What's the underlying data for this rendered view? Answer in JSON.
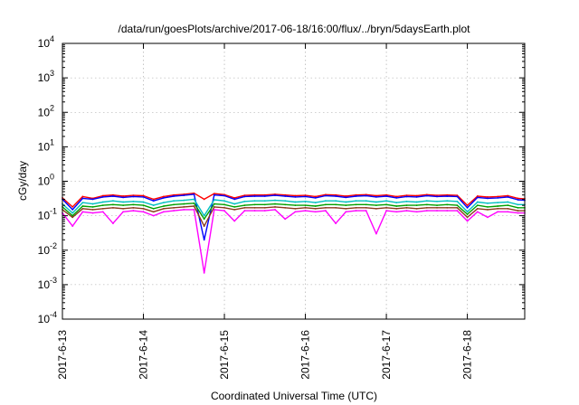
{
  "chart_data": {
    "type": "line",
    "title": "/data/run/goesPlots/archive/2017-06-18/16:00/flux/../bryn/5daysEarth.plot",
    "xlabel": "Coordinated Universal Time (UTC)",
    "ylabel": "cGy/day",
    "y_scale": "log",
    "ylim": [
      0.0001,
      10000
    ],
    "y_ticks": [
      {
        "base": "10",
        "exp": "-4",
        "value": 0.0001
      },
      {
        "base": "10",
        "exp": "-3",
        "value": 0.001
      },
      {
        "base": "10",
        "exp": "-2",
        "value": 0.01
      },
      {
        "base": "10",
        "exp": "-1",
        "value": 0.1
      },
      {
        "base": "10",
        "exp": "0",
        "value": 1
      },
      {
        "base": "10",
        "exp": "1",
        "value": 10
      },
      {
        "base": "10",
        "exp": "2",
        "value": 100
      },
      {
        "base": "10",
        "exp": "3",
        "value": 1000
      },
      {
        "base": "10",
        "exp": "4",
        "value": 10000
      }
    ],
    "xlim": [
      "2017-06-13T00:00",
      "2017-06-18T17:00"
    ],
    "x_ticks": [
      "2017-6-13",
      "2017-6-14",
      "2017-6-15",
      "2017-6-16",
      "2017-6-17",
      "2017-6-18"
    ],
    "grid": true,
    "legend": "none",
    "series": [
      {
        "color": "#ff0000",
        "x": [
          "2017-06-13T00:00",
          "2017-06-13T03:00",
          "2017-06-13T06:00",
          "2017-06-13T09:00",
          "2017-06-13T12:00",
          "2017-06-13T15:00",
          "2017-06-13T18:00",
          "2017-06-13T21:00",
          "2017-06-14T00:00",
          "2017-06-14T03:00",
          "2017-06-14T06:00",
          "2017-06-14T09:00",
          "2017-06-14T12:00",
          "2017-06-14T15:00",
          "2017-06-14T18:00",
          "2017-06-14T21:00",
          "2017-06-15T00:00",
          "2017-06-15T03:00",
          "2017-06-15T06:00",
          "2017-06-15T09:00",
          "2017-06-15T12:00",
          "2017-06-15T15:00",
          "2017-06-15T18:00",
          "2017-06-15T21:00",
          "2017-06-16T00:00",
          "2017-06-16T03:00",
          "2017-06-16T06:00",
          "2017-06-16T09:00",
          "2017-06-16T12:00",
          "2017-06-16T15:00",
          "2017-06-16T18:00",
          "2017-06-16T21:00",
          "2017-06-17T00:00",
          "2017-06-17T03:00",
          "2017-06-17T06:00",
          "2017-06-17T09:00",
          "2017-06-17T12:00",
          "2017-06-17T15:00",
          "2017-06-17T18:00",
          "2017-06-17T21:00",
          "2017-06-18T00:00",
          "2017-06-18T03:00",
          "2017-06-18T06:00",
          "2017-06-18T09:00",
          "2017-06-18T12:00",
          "2017-06-18T15:00",
          "2017-06-18T17:00"
        ],
        "values": [
          0.33,
          0.18,
          0.36,
          0.32,
          0.38,
          0.4,
          0.37,
          0.39,
          0.38,
          0.3,
          0.36,
          0.4,
          0.42,
          0.45,
          0.3,
          0.44,
          0.41,
          0.33,
          0.39,
          0.4,
          0.4,
          0.42,
          0.4,
          0.38,
          0.39,
          0.36,
          0.41,
          0.4,
          0.37,
          0.4,
          0.41,
          0.38,
          0.4,
          0.36,
          0.39,
          0.38,
          0.41,
          0.39,
          0.4,
          0.39,
          0.2,
          0.37,
          0.35,
          0.36,
          0.38,
          0.32,
          0.31
        ]
      },
      {
        "color": "#0000ff",
        "x": [
          "2017-06-13T00:00",
          "2017-06-13T03:00",
          "2017-06-13T06:00",
          "2017-06-13T09:00",
          "2017-06-13T12:00",
          "2017-06-13T15:00",
          "2017-06-13T18:00",
          "2017-06-13T21:00",
          "2017-06-14T00:00",
          "2017-06-14T03:00",
          "2017-06-14T06:00",
          "2017-06-14T09:00",
          "2017-06-14T12:00",
          "2017-06-14T15:00",
          "2017-06-14T18:00",
          "2017-06-14T21:00",
          "2017-06-15T00:00",
          "2017-06-15T03:00",
          "2017-06-15T06:00",
          "2017-06-15T09:00",
          "2017-06-15T12:00",
          "2017-06-15T15:00",
          "2017-06-15T18:00",
          "2017-06-15T21:00",
          "2017-06-16T00:00",
          "2017-06-16T03:00",
          "2017-06-16T06:00",
          "2017-06-16T09:00",
          "2017-06-16T12:00",
          "2017-06-16T15:00",
          "2017-06-16T18:00",
          "2017-06-16T21:00",
          "2017-06-17T00:00",
          "2017-06-17T03:00",
          "2017-06-17T06:00",
          "2017-06-17T09:00",
          "2017-06-17T12:00",
          "2017-06-17T15:00",
          "2017-06-17T18:00",
          "2017-06-17T21:00",
          "2017-06-18T00:00",
          "2017-06-18T03:00",
          "2017-06-18T06:00",
          "2017-06-18T09:00",
          "2017-06-18T12:00",
          "2017-06-18T15:00",
          "2017-06-18T17:00"
        ],
        "values": [
          0.3,
          0.15,
          0.32,
          0.3,
          0.35,
          0.37,
          0.34,
          0.36,
          0.35,
          0.27,
          0.33,
          0.37,
          0.39,
          0.42,
          0.02,
          0.4,
          0.38,
          0.3,
          0.36,
          0.37,
          0.37,
          0.39,
          0.37,
          0.35,
          0.36,
          0.33,
          0.38,
          0.37,
          0.34,
          0.37,
          0.38,
          0.35,
          0.37,
          0.33,
          0.36,
          0.35,
          0.38,
          0.36,
          0.37,
          0.36,
          0.17,
          0.34,
          0.32,
          0.33,
          0.35,
          0.29,
          0.28
        ]
      },
      {
        "color": "#00c0c0",
        "x": [
          "2017-06-13T00:00",
          "2017-06-13T03:00",
          "2017-06-13T06:00",
          "2017-06-13T09:00",
          "2017-06-13T12:00",
          "2017-06-13T15:00",
          "2017-06-13T18:00",
          "2017-06-13T21:00",
          "2017-06-14T00:00",
          "2017-06-14T03:00",
          "2017-06-14T06:00",
          "2017-06-14T09:00",
          "2017-06-14T12:00",
          "2017-06-14T15:00",
          "2017-06-14T18:00",
          "2017-06-14T21:00",
          "2017-06-15T00:00",
          "2017-06-15T03:00",
          "2017-06-15T06:00",
          "2017-06-15T09:00",
          "2017-06-15T12:00",
          "2017-06-15T15:00",
          "2017-06-15T18:00",
          "2017-06-15T21:00",
          "2017-06-16T00:00",
          "2017-06-16T03:00",
          "2017-06-16T06:00",
          "2017-06-16T09:00",
          "2017-06-16T12:00",
          "2017-06-16T15:00",
          "2017-06-16T18:00",
          "2017-06-16T21:00",
          "2017-06-17T00:00",
          "2017-06-17T03:00",
          "2017-06-17T06:00",
          "2017-06-17T09:00",
          "2017-06-17T12:00",
          "2017-06-17T15:00",
          "2017-06-17T18:00",
          "2017-06-17T21:00",
          "2017-06-18T00:00",
          "2017-06-18T03:00",
          "2017-06-18T06:00",
          "2017-06-18T09:00",
          "2017-06-18T12:00",
          "2017-06-18T15:00",
          "2017-06-18T17:00"
        ],
        "values": [
          0.22,
          0.12,
          0.24,
          0.22,
          0.25,
          0.27,
          0.25,
          0.26,
          0.25,
          0.2,
          0.24,
          0.27,
          0.28,
          0.3,
          0.1,
          0.29,
          0.27,
          0.22,
          0.26,
          0.27,
          0.27,
          0.28,
          0.27,
          0.25,
          0.26,
          0.24,
          0.27,
          0.27,
          0.25,
          0.27,
          0.27,
          0.25,
          0.27,
          0.24,
          0.26,
          0.25,
          0.27,
          0.26,
          0.27,
          0.26,
          0.13,
          0.25,
          0.23,
          0.24,
          0.25,
          0.21,
          0.21
        ]
      },
      {
        "color": "#00a000",
        "x": [
          "2017-06-13T00:00",
          "2017-06-13T03:00",
          "2017-06-13T06:00",
          "2017-06-13T09:00",
          "2017-06-13T12:00",
          "2017-06-13T15:00",
          "2017-06-13T18:00",
          "2017-06-13T21:00",
          "2017-06-14T00:00",
          "2017-06-14T03:00",
          "2017-06-14T06:00",
          "2017-06-14T09:00",
          "2017-06-14T12:00",
          "2017-06-14T15:00",
          "2017-06-14T18:00",
          "2017-06-14T21:00",
          "2017-06-15T00:00",
          "2017-06-15T03:00",
          "2017-06-15T06:00",
          "2017-06-15T09:00",
          "2017-06-15T12:00",
          "2017-06-15T15:00",
          "2017-06-15T18:00",
          "2017-06-15T21:00",
          "2017-06-16T00:00",
          "2017-06-16T03:00",
          "2017-06-16T06:00",
          "2017-06-16T09:00",
          "2017-06-16T12:00",
          "2017-06-16T15:00",
          "2017-06-16T18:00",
          "2017-06-16T21:00",
          "2017-06-17T00:00",
          "2017-06-17T03:00",
          "2017-06-17T06:00",
          "2017-06-17T09:00",
          "2017-06-17T12:00",
          "2017-06-17T15:00",
          "2017-06-17T18:00",
          "2017-06-17T21:00",
          "2017-06-18T00:00",
          "2017-06-18T03:00",
          "2017-06-18T06:00",
          "2017-06-18T09:00",
          "2017-06-18T12:00",
          "2017-06-18T15:00",
          "2017-06-18T17:00"
        ],
        "values": [
          0.18,
          0.1,
          0.19,
          0.18,
          0.2,
          0.21,
          0.2,
          0.21,
          0.2,
          0.16,
          0.19,
          0.21,
          0.22,
          0.23,
          0.08,
          0.22,
          0.21,
          0.18,
          0.2,
          0.21,
          0.21,
          0.22,
          0.21,
          0.2,
          0.2,
          0.19,
          0.21,
          0.21,
          0.2,
          0.21,
          0.21,
          0.2,
          0.21,
          0.19,
          0.2,
          0.2,
          0.21,
          0.2,
          0.21,
          0.2,
          0.11,
          0.2,
          0.18,
          0.19,
          0.2,
          0.17,
          0.17
        ]
      },
      {
        "color": "#8b3a1e",
        "x": [
          "2017-06-13T00:00",
          "2017-06-13T03:00",
          "2017-06-13T06:00",
          "2017-06-13T09:00",
          "2017-06-13T12:00",
          "2017-06-13T15:00",
          "2017-06-13T18:00",
          "2017-06-13T21:00",
          "2017-06-14T00:00",
          "2017-06-14T03:00",
          "2017-06-14T06:00",
          "2017-06-14T09:00",
          "2017-06-14T12:00",
          "2017-06-14T15:00",
          "2017-06-14T18:00",
          "2017-06-14T21:00",
          "2017-06-15T00:00",
          "2017-06-15T03:00",
          "2017-06-15T06:00",
          "2017-06-15T09:00",
          "2017-06-15T12:00",
          "2017-06-15T15:00",
          "2017-06-15T18:00",
          "2017-06-15T21:00",
          "2017-06-16T00:00",
          "2017-06-16T03:00",
          "2017-06-16T06:00",
          "2017-06-16T09:00",
          "2017-06-16T12:00",
          "2017-06-16T15:00",
          "2017-06-16T18:00",
          "2017-06-16T21:00",
          "2017-06-17T00:00",
          "2017-06-17T03:00",
          "2017-06-17T06:00",
          "2017-06-17T09:00",
          "2017-06-17T12:00",
          "2017-06-17T15:00",
          "2017-06-17T18:00",
          "2017-06-17T21:00",
          "2017-06-18T00:00",
          "2017-06-18T03:00",
          "2017-06-18T06:00",
          "2017-06-18T09:00",
          "2017-06-18T12:00",
          "2017-06-18T15:00",
          "2017-06-18T17:00"
        ],
        "values": [
          0.15,
          0.09,
          0.16,
          0.15,
          0.16,
          0.17,
          0.16,
          0.17,
          0.16,
          0.13,
          0.16,
          0.17,
          0.18,
          0.19,
          0.05,
          0.18,
          0.17,
          0.15,
          0.17,
          0.17,
          0.17,
          0.18,
          0.17,
          0.16,
          0.17,
          0.16,
          0.17,
          0.17,
          0.16,
          0.17,
          0.17,
          0.16,
          0.17,
          0.16,
          0.17,
          0.16,
          0.17,
          0.17,
          0.17,
          0.17,
          0.09,
          0.16,
          0.15,
          0.16,
          0.16,
          0.14,
          0.14
        ]
      },
      {
        "color": "#ff00ff",
        "x": [
          "2017-06-13T00:00",
          "2017-06-13T03:00",
          "2017-06-13T06:00",
          "2017-06-13T09:00",
          "2017-06-13T12:00",
          "2017-06-13T15:00",
          "2017-06-13T18:00",
          "2017-06-13T21:00",
          "2017-06-14T00:00",
          "2017-06-14T03:00",
          "2017-06-14T06:00",
          "2017-06-14T09:00",
          "2017-06-14T12:00",
          "2017-06-14T15:00",
          "2017-06-14T18:00",
          "2017-06-14T21:00",
          "2017-06-15T00:00",
          "2017-06-15T03:00",
          "2017-06-15T06:00",
          "2017-06-15T09:00",
          "2017-06-15T12:00",
          "2017-06-15T15:00",
          "2017-06-15T18:00",
          "2017-06-15T21:00",
          "2017-06-16T00:00",
          "2017-06-16T03:00",
          "2017-06-16T06:00",
          "2017-06-16T09:00",
          "2017-06-16T12:00",
          "2017-06-16T15:00",
          "2017-06-16T18:00",
          "2017-06-16T21:00",
          "2017-06-17T00:00",
          "2017-06-17T03:00",
          "2017-06-17T06:00",
          "2017-06-17T09:00",
          "2017-06-17T12:00",
          "2017-06-17T15:00",
          "2017-06-17T18:00",
          "2017-06-17T21:00",
          "2017-06-18T00:00",
          "2017-06-18T03:00",
          "2017-06-18T06:00",
          "2017-06-18T09:00",
          "2017-06-18T12:00",
          "2017-06-18T15:00",
          "2017-06-18T17:00"
        ],
        "values": [
          0.12,
          0.05,
          0.13,
          0.12,
          0.13,
          0.06,
          0.13,
          0.14,
          0.13,
          0.1,
          0.13,
          0.14,
          0.15,
          0.15,
          0.0022,
          0.15,
          0.14,
          0.07,
          0.14,
          0.14,
          0.14,
          0.15,
          0.08,
          0.13,
          0.14,
          0.13,
          0.14,
          0.06,
          0.13,
          0.14,
          0.14,
          0.03,
          0.14,
          0.13,
          0.14,
          0.13,
          0.14,
          0.14,
          0.14,
          0.14,
          0.07,
          0.13,
          0.09,
          0.13,
          0.13,
          0.12,
          0.12
        ]
      }
    ]
  }
}
